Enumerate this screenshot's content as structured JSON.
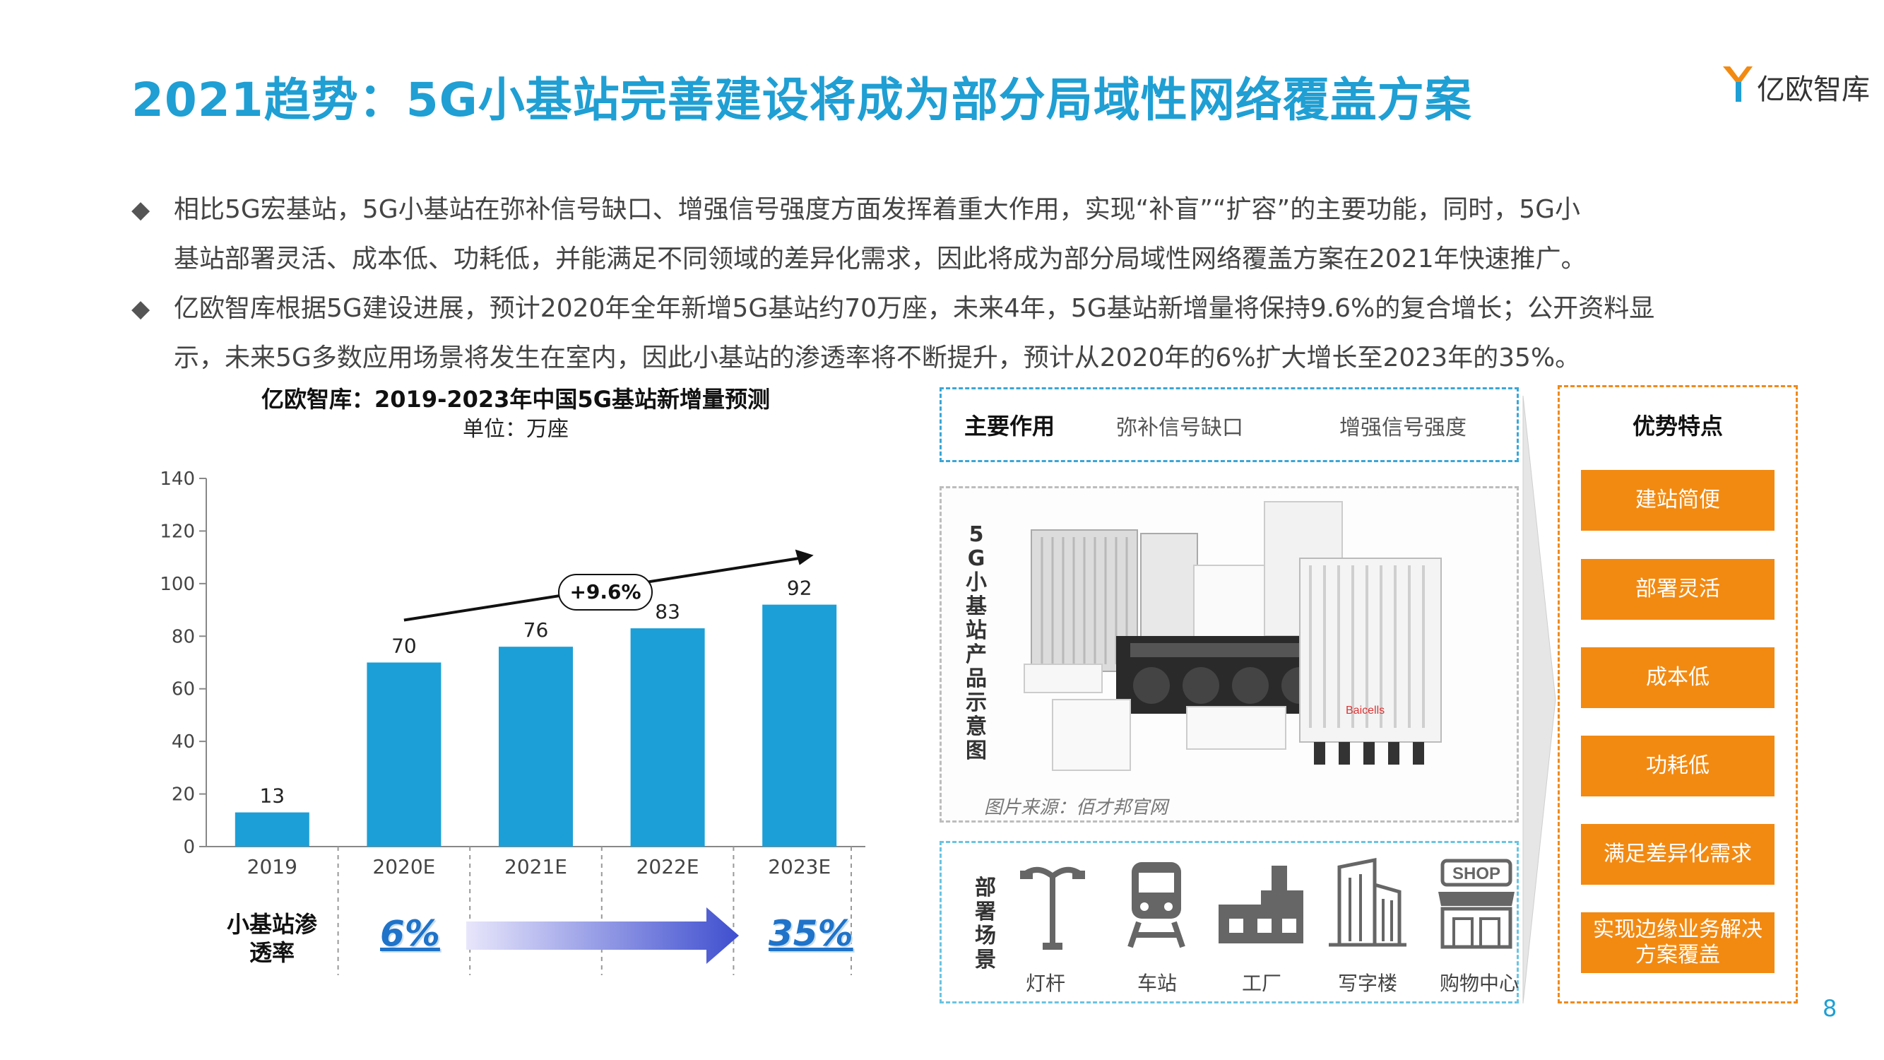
{
  "header": {
    "title": "2021趋势：5G小基站完善建设将成为部分局域性网络覆盖方案",
    "logo_text": "亿欧智库"
  },
  "bullets": [
    {
      "line1": "相比5G宏基站，5G小基站在弥补信号缺口、增强信号强度方面发挥着重大作用，实现“补盲”“扩容”的主要功能，同时，5G小",
      "line2": "基站部署灵活、成本低、功耗低，并能满足不同领域的差异化需求，因此将成为部分局域性网络覆盖方案在2021年快速推广。"
    },
    {
      "line1": "亿欧智库根据5G建设进展，预计2020年全年新增5G基站约70万座，未来4年，5G基站新增量将保持9.6%的复合增长；公开资料显",
      "line2": "示，未来5G多数应用场景将发生在室内，因此小基站的渗透率将不断提升，预计从2020年的6%扩大增长至2023年的35%。"
    }
  ],
  "bullet_marker": "◆",
  "chart_data": {
    "type": "bar",
    "title": "亿欧智库：2019-2023年中国5G基站新增量预测",
    "subtitle": "单位：万座",
    "categories": [
      "2019",
      "2020E",
      "2021E",
      "2022E",
      "2023E"
    ],
    "values": [
      13,
      70,
      76,
      83,
      92
    ],
    "yticks": [
      0,
      20,
      40,
      60,
      80,
      100,
      120,
      140
    ],
    "ylim": [
      0,
      140
    ],
    "bar_color": "#1c9fd6",
    "growth_annotation": "+9.6%"
  },
  "penetration": {
    "label_line1": "小基站渗",
    "label_line2": "透率",
    "start_value": "6%",
    "end_value": "35%"
  },
  "roles": {
    "title": "主要作用",
    "items": [
      "弥补信号缺口",
      "增强信号强度"
    ]
  },
  "products": {
    "vertical_label": [
      "5",
      "G",
      "小",
      "基",
      "站",
      "产",
      "品",
      "示",
      "意",
      "图"
    ],
    "caption": "图片来源：佰才邦官网",
    "brand_label": "Baicells"
  },
  "scenes": {
    "vertical_label": [
      "部",
      "署",
      "场",
      "景"
    ],
    "items": [
      "灯杆",
      "车站",
      "工厂",
      "写字楼",
      "购物中心"
    ],
    "shop_sign": "SHOP"
  },
  "advantages": {
    "title": "优势特点",
    "items": [
      "建站简便",
      "部署灵活",
      "成本低",
      "功耗低",
      "满足差异化需求",
      "实现边缘业务解决方案覆盖"
    ]
  },
  "page_number": "8"
}
